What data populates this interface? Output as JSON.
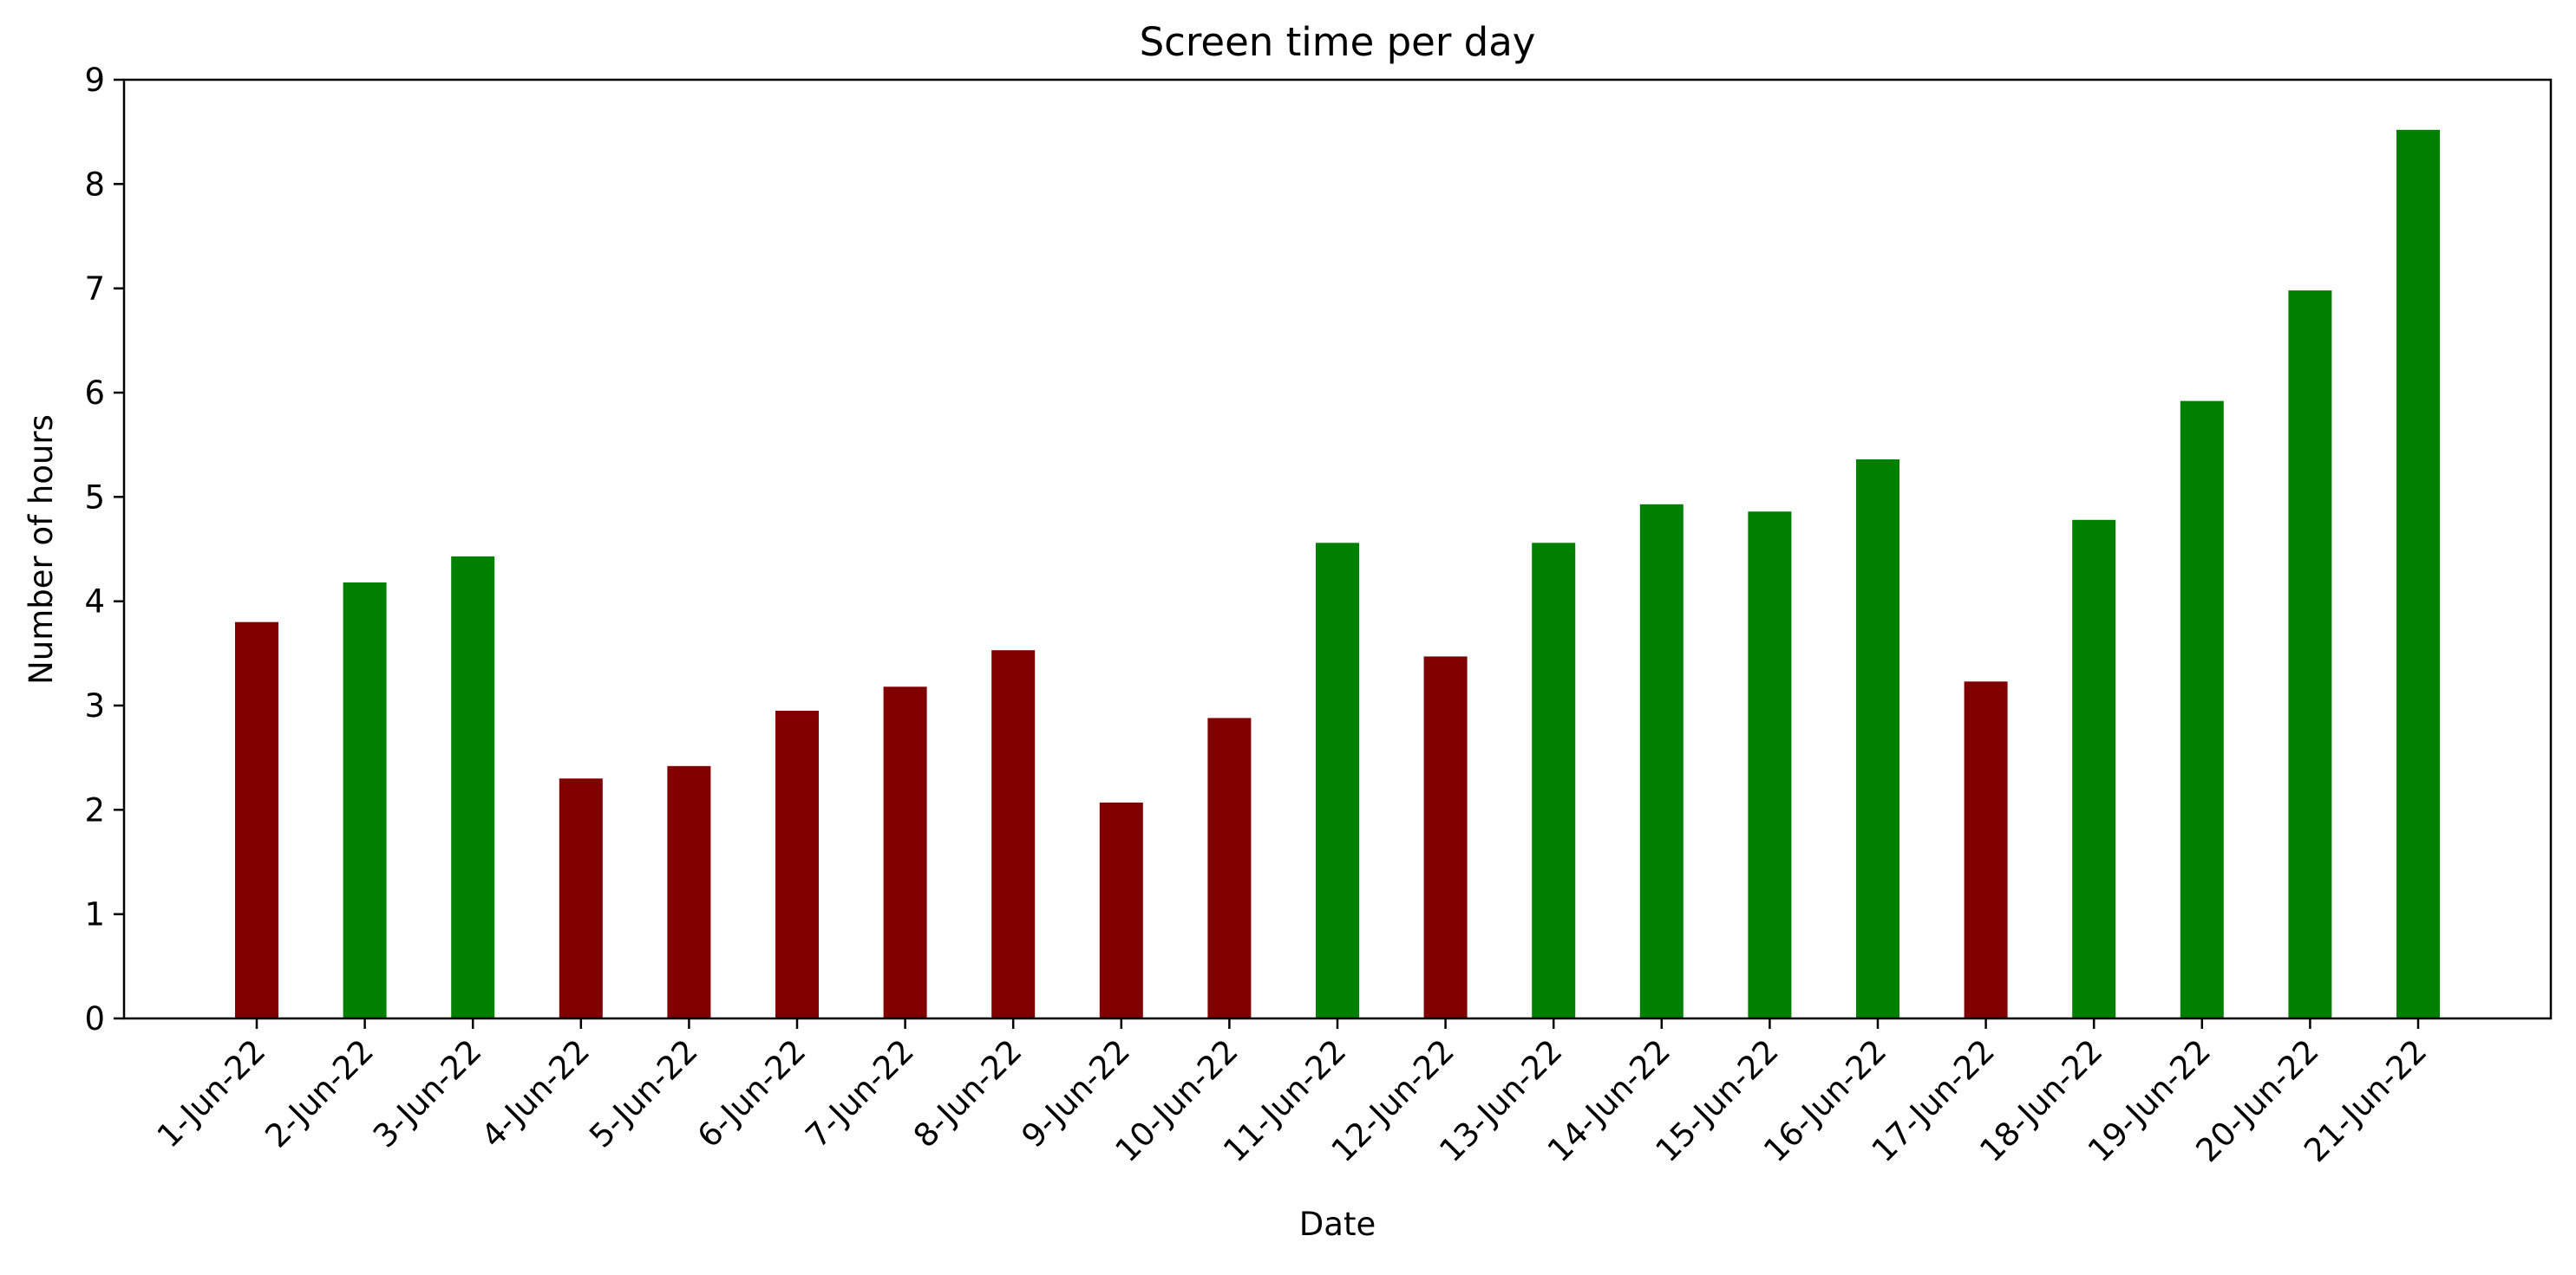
{
  "colors": {
    "above_threshold": "#008000",
    "below_threshold": "#800000",
    "axes": "#000000",
    "background": "#ffffff"
  },
  "chart_data": {
    "type": "bar",
    "title": "Screen time per day",
    "xlabel": "Date",
    "ylabel": "Number of hours",
    "ylim": [
      0,
      9
    ],
    "yticks": [
      0,
      1,
      2,
      3,
      4,
      5,
      6,
      7,
      8,
      9
    ],
    "grid": false,
    "legend": "none",
    "x_tick_rotation_deg": 45,
    "categories": [
      "1-Jun-22",
      "2-Jun-22",
      "3-Jun-22",
      "4-Jun-22",
      "5-Jun-22",
      "6-Jun-22",
      "7-Jun-22",
      "8-Jun-22",
      "9-Jun-22",
      "10-Jun-22",
      "11-Jun-22",
      "12-Jun-22",
      "13-Jun-22",
      "14-Jun-22",
      "15-Jun-22",
      "16-Jun-22",
      "17-Jun-22",
      "18-Jun-22",
      "19-Jun-22",
      "20-Jun-22",
      "21-Jun-22"
    ],
    "values": [
      3.8,
      4.18,
      4.43,
      2.3,
      2.42,
      2.95,
      3.18,
      3.53,
      2.07,
      2.88,
      4.56,
      3.47,
      4.56,
      4.93,
      4.86,
      5.36,
      3.23,
      4.78,
      5.92,
      6.98,
      8.52
    ],
    "bar_colors": [
      "below_threshold",
      "above_threshold",
      "above_threshold",
      "below_threshold",
      "below_threshold",
      "below_threshold",
      "below_threshold",
      "below_threshold",
      "below_threshold",
      "below_threshold",
      "above_threshold",
      "below_threshold",
      "above_threshold",
      "above_threshold",
      "above_threshold",
      "above_threshold",
      "below_threshold",
      "above_threshold",
      "above_threshold",
      "above_threshold",
      "above_threshold"
    ]
  }
}
